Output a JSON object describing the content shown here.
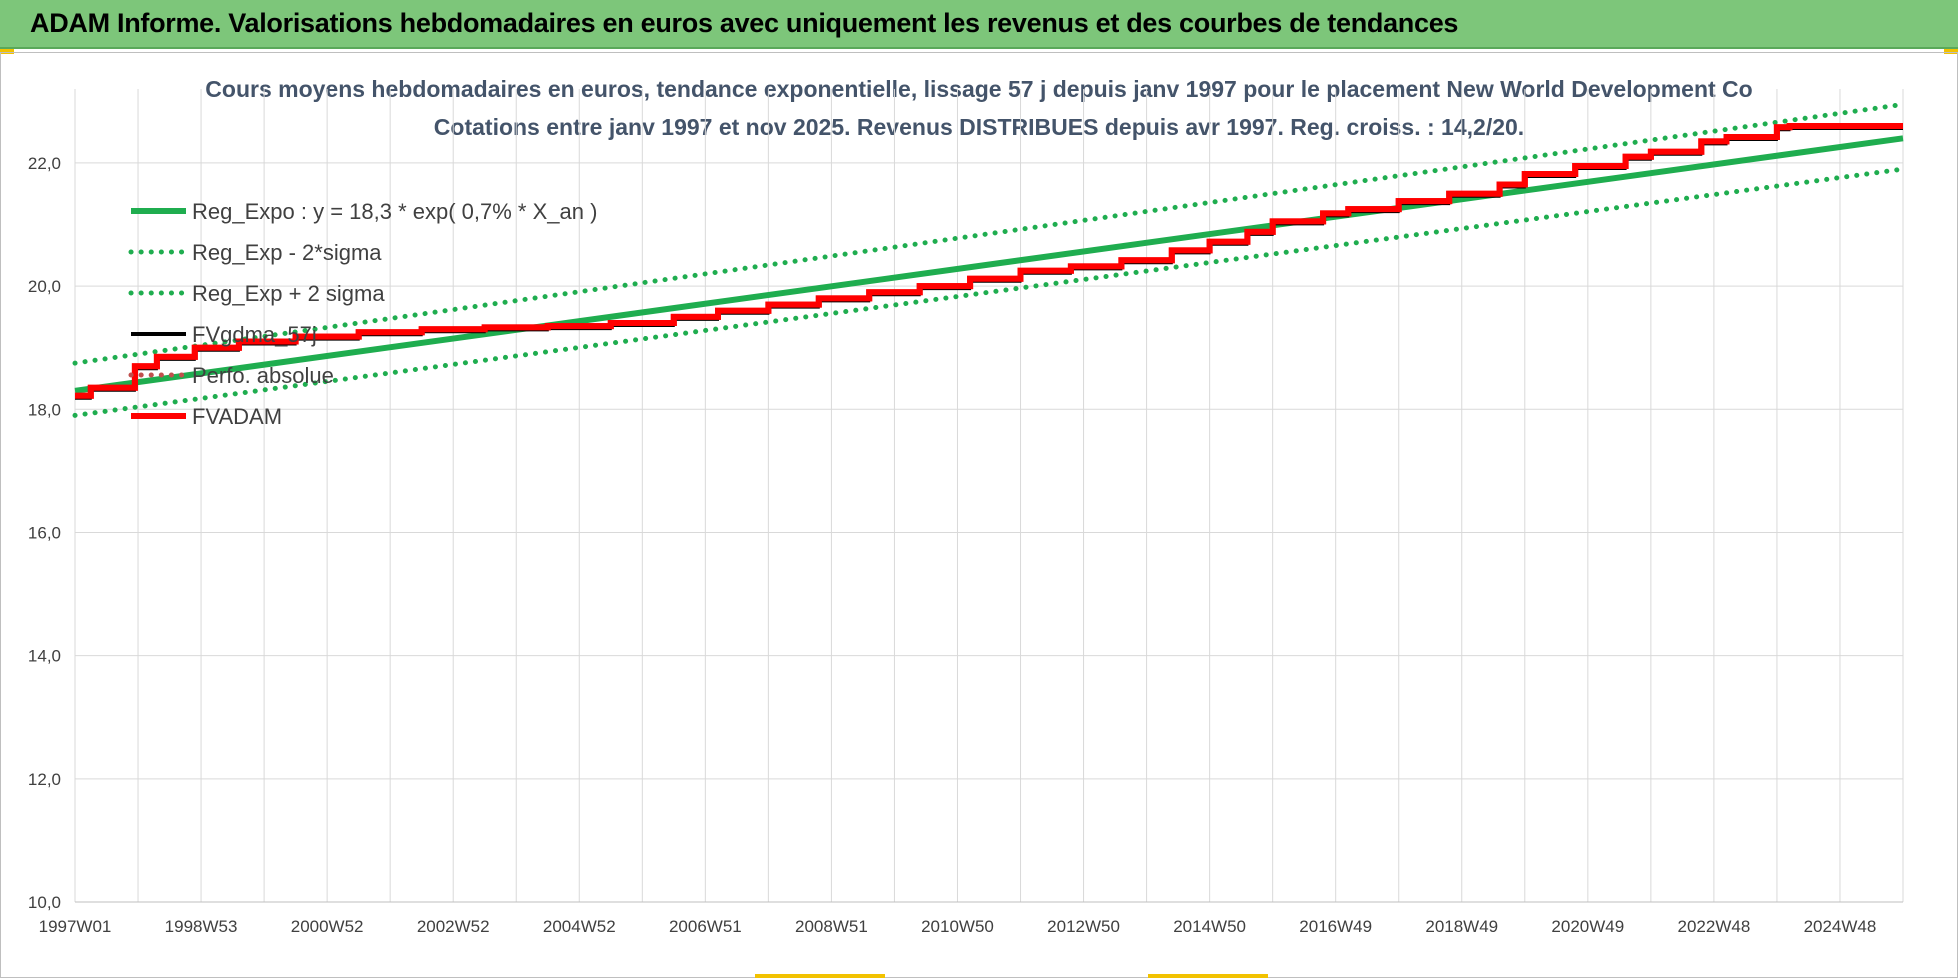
{
  "header": {
    "title": "ADAM Informe. Valorisations hebdomadaires en euros avec uniquement les revenus et des courbes de tendances"
  },
  "colors": {
    "header_bg": "#7dc67a",
    "trend": "#1fad4f",
    "band": "#1fad4f",
    "smooth": "#000000",
    "perf": "#c0504d",
    "adam": "#ff0000",
    "grid": "#d9d9d9"
  },
  "chart_data": {
    "type": "line",
    "title": "Cours moyens hebdomadaires en euros, tendance exponentielle, lissage 57 j depuis janv 1997 pour le placement New World Development Co",
    "subtitle": "Cotations entre janv 1997 et nov 2025. Revenus DISTRIBUES depuis avr 1997. Reg. croiss. : 14,2/20.",
    "xlabel": "",
    "ylabel": "",
    "ylim": [
      10,
      23.2
    ],
    "xlim": [
      1997.0,
      2026.0
    ],
    "yticks": [
      "10,0",
      "12,0",
      "14,0",
      "16,0",
      "18,0",
      "20,0",
      "22,0"
    ],
    "ytick_values": [
      10,
      12,
      14,
      16,
      18,
      20,
      22
    ],
    "xtick_labels": [
      "1997W01",
      "1998W53",
      "2000W52",
      "2002W52",
      "2004W52",
      "2006W51",
      "2008W51",
      "2010W50",
      "2012W50",
      "2014W50",
      "2016W49",
      "2018W49",
      "2020W49",
      "2022W48",
      "2024W48"
    ],
    "xtick_positions": [
      1997.0,
      1999.0,
      2001.0,
      2003.0,
      2005.0,
      2007.0,
      2009.0,
      2011.0,
      2013.0,
      2015.0,
      2017.0,
      2019.0,
      2021.0,
      2023.0,
      2025.0
    ],
    "grid": true,
    "legend_position": "top-left",
    "series": [
      {
        "name": "Reg_Expo : y = 18,3 * exp( 0,7% *  X_an )",
        "style": "solid-thick",
        "color": "#1fad4f",
        "x": [
          1997.0,
          2026.0
        ],
        "values": [
          18.3,
          22.4
        ]
      },
      {
        "name": "Reg_Exp - 2*sigma",
        "style": "dotted",
        "color": "#1fad4f",
        "x": [
          1997.0,
          2026.0
        ],
        "values": [
          17.9,
          21.9
        ]
      },
      {
        "name": "Reg_Exp + 2 sigma",
        "style": "dotted",
        "color": "#1fad4f",
        "x": [
          1997.0,
          2026.0
        ],
        "values": [
          18.75,
          22.95
        ]
      },
      {
        "name": "FVgdma_57j",
        "style": "solid",
        "color": "#000000",
        "x": [
          1997.0,
          1997.25,
          1997.25,
          1997.95,
          1997.95,
          1998.3,
          1998.3,
          1998.9,
          1998.9,
          1999.6,
          1999.6,
          2000.5,
          2000.5,
          2001.5,
          2001.5,
          2002.5,
          2002.5,
          2003.5,
          2003.5,
          2004.5,
          2004.5,
          2005.5,
          2005.5,
          2006.5,
          2006.5,
          2007.2,
          2007.2,
          2008.0,
          2008.0,
          2008.8,
          2008.8,
          2009.6,
          2009.6,
          2010.4,
          2010.4,
          2011.2,
          2011.2,
          2012.0,
          2012.0,
          2012.8,
          2012.8,
          2013.6,
          2013.6,
          2014.4,
          2014.4,
          2015.0,
          2015.0,
          2015.6,
          2015.6,
          2016.0,
          2016.0,
          2016.8,
          2016.8,
          2017.2,
          2017.2,
          2018.0,
          2018.0,
          2018.8,
          2018.8,
          2019.6,
          2019.6,
          2020.0,
          2020.0,
          2020.8,
          2020.8,
          2021.6,
          2021.6,
          2022.0,
          2022.0,
          2022.8,
          2022.8,
          2023.2,
          2023.2,
          2024.0,
          2024.0,
          2024.2,
          2024.2,
          2026.0
        ],
        "values": [
          18.22,
          18.22,
          18.35,
          18.35,
          18.7,
          18.7,
          18.85,
          18.85,
          19.0,
          19.0,
          19.1,
          19.1,
          19.18,
          19.18,
          19.25,
          19.25,
          19.3,
          19.3,
          19.33,
          19.33,
          19.35,
          19.35,
          19.4,
          19.4,
          19.5,
          19.5,
          19.6,
          19.6,
          19.7,
          19.7,
          19.8,
          19.8,
          19.9,
          19.9,
          20.0,
          20.0,
          20.12,
          20.12,
          20.25,
          20.25,
          20.32,
          20.32,
          20.42,
          20.42,
          20.58,
          20.58,
          20.72,
          20.72,
          20.88,
          20.88,
          21.05,
          21.05,
          21.18,
          21.18,
          21.25,
          21.25,
          21.38,
          21.38,
          21.5,
          21.5,
          21.65,
          21.65,
          21.82,
          21.82,
          21.95,
          21.95,
          22.1,
          22.1,
          22.18,
          22.18,
          22.35,
          22.35,
          22.42,
          22.42,
          22.58,
          22.58,
          22.6,
          22.6
        ]
      },
      {
        "name": "Perfo. absolue",
        "style": "dotted",
        "color": "#c0504d",
        "x": [],
        "values": []
      },
      {
        "name": "FVADAM",
        "style": "solid-thick",
        "color": "#ff0000",
        "x": [
          1997.0,
          1997.25,
          1997.25,
          1997.95,
          1997.95,
          1998.3,
          1998.3,
          1998.9,
          1998.9,
          1999.6,
          1999.6,
          2000.5,
          2000.5,
          2001.5,
          2001.5,
          2002.5,
          2002.5,
          2003.5,
          2003.5,
          2004.5,
          2004.5,
          2005.5,
          2005.5,
          2006.5,
          2006.5,
          2007.2,
          2007.2,
          2008.0,
          2008.0,
          2008.8,
          2008.8,
          2009.6,
          2009.6,
          2010.4,
          2010.4,
          2011.2,
          2011.2,
          2012.0,
          2012.0,
          2012.8,
          2012.8,
          2013.6,
          2013.6,
          2014.4,
          2014.4,
          2015.0,
          2015.0,
          2015.6,
          2015.6,
          2016.0,
          2016.0,
          2016.8,
          2016.8,
          2017.2,
          2017.2,
          2018.0,
          2018.0,
          2018.8,
          2018.8,
          2019.6,
          2019.6,
          2020.0,
          2020.0,
          2020.8,
          2020.8,
          2021.6,
          2021.6,
          2022.0,
          2022.0,
          2022.8,
          2022.8,
          2023.2,
          2023.2,
          2024.0,
          2024.0,
          2024.2,
          2024.2,
          2026.0
        ],
        "values": [
          18.22,
          18.22,
          18.35,
          18.35,
          18.7,
          18.7,
          18.85,
          18.85,
          19.0,
          19.0,
          19.1,
          19.1,
          19.18,
          19.18,
          19.25,
          19.25,
          19.3,
          19.3,
          19.33,
          19.33,
          19.35,
          19.35,
          19.4,
          19.4,
          19.5,
          19.5,
          19.6,
          19.6,
          19.7,
          19.7,
          19.8,
          19.8,
          19.9,
          19.9,
          20.0,
          20.0,
          20.12,
          20.12,
          20.25,
          20.25,
          20.32,
          20.32,
          20.42,
          20.42,
          20.58,
          20.58,
          20.72,
          20.72,
          20.88,
          20.88,
          21.05,
          21.05,
          21.18,
          21.18,
          21.25,
          21.25,
          21.38,
          21.38,
          21.5,
          21.5,
          21.65,
          21.65,
          21.82,
          21.82,
          21.95,
          21.95,
          22.1,
          22.1,
          22.18,
          22.18,
          22.35,
          22.35,
          22.42,
          22.42,
          22.58,
          22.58,
          22.6,
          22.6
        ]
      }
    ]
  }
}
